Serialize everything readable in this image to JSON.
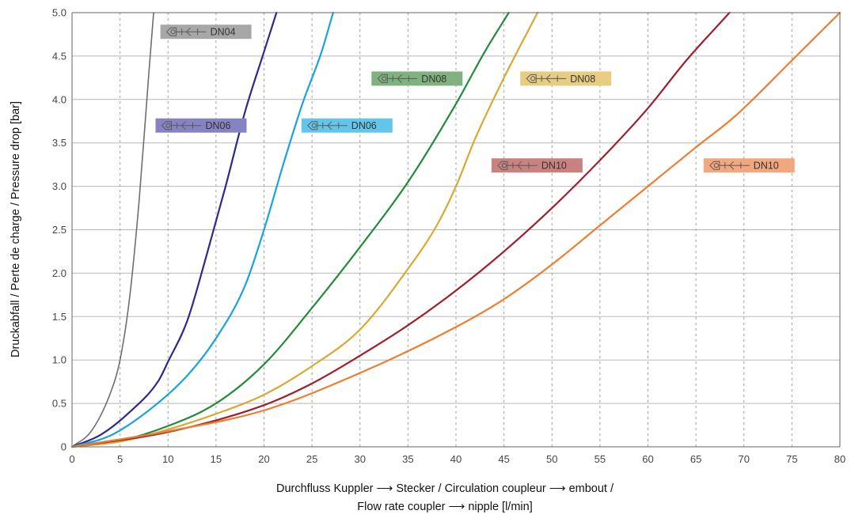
{
  "chart_data": {
    "type": "line",
    "xlabel_line1": "Durchfluss Kuppler ⟶ Stecker / Circulation coupleur ⟶ embout /",
    "xlabel_line2": "Flow rate coupler  ⟶ nipple [l/min]",
    "ylabel": "Druckabfall / Perte de charge / Pressure drop [bar]",
    "xlim": [
      0,
      80
    ],
    "ylim": [
      0,
      5.0
    ],
    "x_ticks": [
      0,
      5,
      10,
      15,
      20,
      25,
      30,
      35,
      40,
      45,
      50,
      55,
      60,
      65,
      70,
      75,
      80
    ],
    "x_tick_labels": [
      "0",
      "5",
      "10",
      "15",
      "20",
      "25",
      "30",
      "35",
      "40",
      "45",
      "50",
      "55",
      "60",
      "65",
      "70",
      "75",
      "80"
    ],
    "y_ticks": [
      0,
      0.5,
      1.0,
      1.5,
      2.0,
      2.5,
      3.0,
      3.5,
      4.0,
      4.5,
      5.0
    ],
    "y_tick_labels": [
      "0",
      "0.5",
      "1.0",
      "1.5",
      "2.0",
      "2.5",
      "3.0",
      "3.5",
      "4.0",
      "4.5",
      "5.0"
    ],
    "grid": true,
    "series": [
      {
        "name": "DN04",
        "color": "#6e6e6e",
        "x": [
          0,
          2,
          4,
          5,
          6,
          7,
          8,
          8.5
        ],
        "y": [
          0,
          0.18,
          0.62,
          1.0,
          1.72,
          2.85,
          4.3,
          5.0
        ]
      },
      {
        "name": "DN06",
        "color": "#2e2a8c",
        "x": [
          0,
          3,
          6,
          9,
          10,
          12,
          14,
          16,
          18,
          20,
          21.3
        ],
        "y": [
          0,
          0.14,
          0.4,
          0.76,
          0.98,
          1.45,
          2.2,
          3.0,
          3.85,
          4.55,
          5.0
        ]
      },
      {
        "name": "DN06",
        "color": "#1aa3e0",
        "x": [
          0,
          4,
          8,
          12,
          15,
          18,
          20,
          22,
          24,
          26,
          27.2
        ],
        "y": [
          0,
          0.13,
          0.42,
          0.82,
          1.25,
          1.85,
          2.5,
          3.25,
          3.95,
          4.55,
          5.0
        ]
      },
      {
        "name": "DN08",
        "color": "#228b3a",
        "x": [
          0,
          5,
          10,
          15,
          20,
          25,
          30,
          35,
          40,
          43,
          45.5
        ],
        "y": [
          0,
          0.07,
          0.24,
          0.5,
          0.95,
          1.6,
          2.3,
          3.05,
          3.95,
          4.55,
          5.0
        ]
      },
      {
        "name": "DN08",
        "color": "#d9a932",
        "x": [
          0,
          5,
          10,
          15,
          20,
          25,
          30,
          35,
          38,
          40,
          42,
          45,
          48.5
        ],
        "y": [
          0,
          0.06,
          0.2,
          0.38,
          0.6,
          0.93,
          1.35,
          2.05,
          2.55,
          3.0,
          3.55,
          4.25,
          5.0
        ]
      },
      {
        "name": "DN10",
        "color": "#a01e2e",
        "x": [
          0,
          10,
          20,
          25,
          30,
          35,
          40,
          45,
          50,
          55,
          60,
          64,
          68.5
        ],
        "y": [
          0,
          0.17,
          0.48,
          0.73,
          1.05,
          1.4,
          1.8,
          2.25,
          2.75,
          3.3,
          3.9,
          4.45,
          5.0
        ]
      },
      {
        "name": "DN10",
        "color": "#ef7d2e",
        "x": [
          0,
          10,
          20,
          30,
          40,
          45,
          50,
          55,
          60,
          65,
          69,
          75,
          80
        ],
        "y": [
          0,
          0.18,
          0.42,
          0.85,
          1.38,
          1.7,
          2.1,
          2.55,
          3.0,
          3.45,
          3.8,
          4.45,
          5.0
        ]
      }
    ],
    "annotations": [
      {
        "text": "DN04",
        "color": "#a7a7a7",
        "x": 9.2,
        "y": 4.78
      },
      {
        "text": "DN06",
        "color": "#8683c2",
        "x": 8.7,
        "y": 3.7
      },
      {
        "text": "DN06",
        "color": "#62c6ea",
        "x": 23.9,
        "y": 3.7
      },
      {
        "text": "DN08",
        "color": "#7fb27e",
        "x": 31.2,
        "y": 4.24
      },
      {
        "text": "DN08",
        "color": "#e6cd82",
        "x": 46.7,
        "y": 4.24
      },
      {
        "text": "DN10",
        "color": "#c98280",
        "x": 43.7,
        "y": 3.24
      },
      {
        "text": "DN10",
        "color": "#f2a87e",
        "x": 65.8,
        "y": 3.24
      }
    ]
  }
}
